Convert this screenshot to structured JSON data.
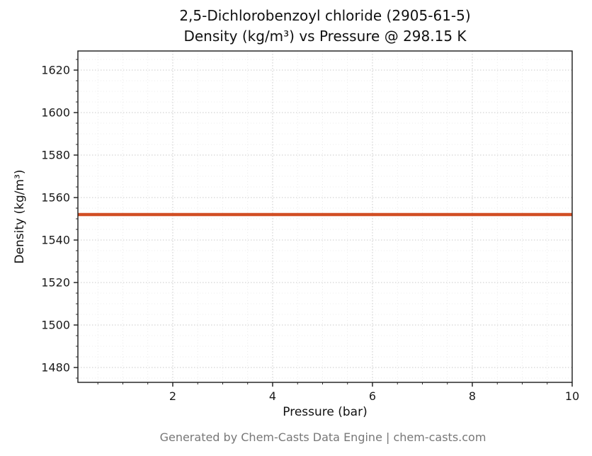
{
  "title": {
    "line1": "2,5-Dichlorobenzoyl chloride (2905-61-5)",
    "line2": "Density (kg/m³) vs Pressure @ 298.15 K"
  },
  "footer": "Generated by Chem-Casts Data Engine | chem-casts.com",
  "chart_data": {
    "type": "line",
    "title": "2,5-Dichlorobenzoyl chloride (2905-61-5) Density (kg/m³) vs Pressure @ 298.15 K",
    "xlabel": "Pressure (bar)",
    "ylabel": "Density (kg/m³)",
    "x": [
      0.1,
      2,
      4,
      6,
      8,
      10
    ],
    "series": [
      {
        "name": "Density",
        "values": [
          1552,
          1552,
          1552,
          1552,
          1552,
          1552
        ],
        "color": "#d14e24",
        "line_width": 4.5
      }
    ],
    "xlim": [
      0.1,
      10
    ],
    "ylim": [
      1473,
      1629
    ],
    "xticks": [
      2,
      4,
      6,
      8,
      10
    ],
    "yticks": [
      1480,
      1500,
      1520,
      1540,
      1560,
      1580,
      1600,
      1620
    ],
    "x_minor_step": 0.5,
    "y_minor_step": 5,
    "grid": true,
    "legend": "none",
    "axis_color": "#1a1a1a",
    "tick_label_color": "#1a1a1a",
    "grid_color": "#c9c9c9",
    "minor_grid_color": "#e6e6e6",
    "tick_font_size": 16
  }
}
